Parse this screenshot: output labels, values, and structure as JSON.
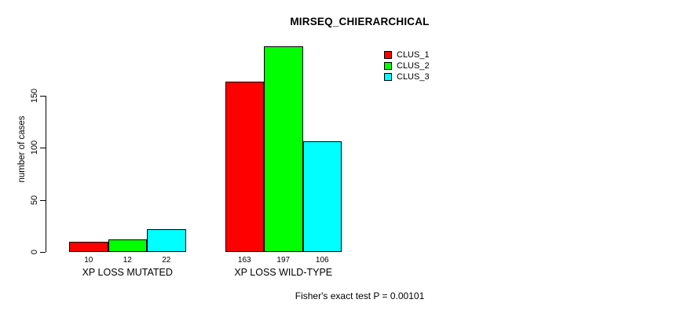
{
  "chart_data": {
    "type": "bar",
    "title": "MIRSEQ_CHIERARCHICAL",
    "ylabel": "number of cases",
    "xlabel": "",
    "categories": [
      "XP LOSS MUTATED",
      "XP LOSS WILD-TYPE"
    ],
    "series": [
      {
        "name": "CLUS_1",
        "color": "#ff0000",
        "values": [
          10,
          163
        ]
      },
      {
        "name": "CLUS_2",
        "color": "#00ff00",
        "values": [
          12,
          197
        ]
      },
      {
        "name": "CLUS_3",
        "color": "#00ffff",
        "values": [
          22,
          106
        ]
      }
    ],
    "bar_value_labels": [
      [
        "10",
        "12",
        "22"
      ],
      [
        "163",
        "197",
        "106"
      ]
    ],
    "yticks": [
      0,
      50,
      100,
      150
    ],
    "ylim": [
      0,
      200
    ],
    "grid": false,
    "legend_position": "top-right",
    "legend_entries": [
      "CLUS_1",
      "CLUS_2",
      "CLUS_3"
    ],
    "annotation": "Fisher's exact test P = 0.00101",
    "colors": {
      "clus_1": "#ff0000",
      "clus_2": "#00ff00",
      "clus_3": "#00ffff",
      "axis": "#000000",
      "background": "#ffffff"
    }
  }
}
